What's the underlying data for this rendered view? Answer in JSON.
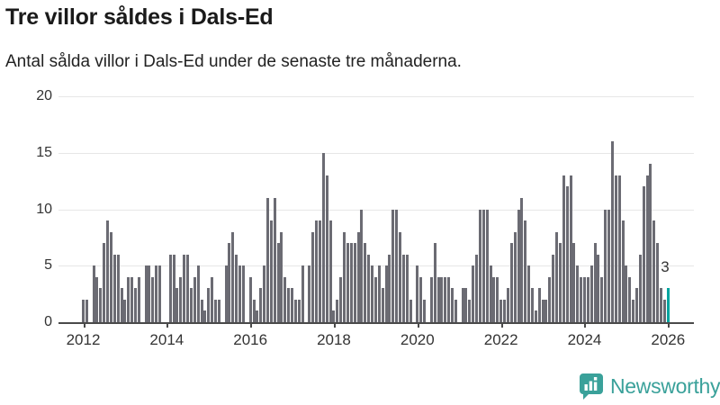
{
  "header": {
    "title": "Tre villor såldes i Dals-Ed",
    "subtitle": "Antal sålda villor i Dals-Ed under de senaste tre månaderna."
  },
  "chart_data": {
    "type": "bar",
    "title": "Tre villor såldes i Dals-Ed",
    "description": "Antal sålda villor i Dals-Ed under de senaste tre månaderna.",
    "frequency": "monthly",
    "x_start": "2012-01",
    "x_end": "2026-01",
    "ylim": [
      0,
      20
    ],
    "yticks": [
      0,
      5,
      10,
      15,
      20
    ],
    "xticks": [
      2012,
      2014,
      2016,
      2018,
      2020,
      2022,
      2024,
      2026
    ],
    "grid": true,
    "bar_color": "#6b6b73",
    "highlight_color": "#00a5a0",
    "highlight": "last",
    "annotation": {
      "text": "3",
      "target": "last-bar"
    },
    "series_by_year": [
      {
        "year": 2012,
        "values": [
          2,
          2,
          0,
          5,
          4,
          3,
          7,
          9,
          8,
          6,
          6,
          3
        ]
      },
      {
        "year": 2013,
        "values": [
          2,
          4,
          4,
          3,
          4,
          0,
          5,
          5,
          4,
          5,
          5,
          0
        ]
      },
      {
        "year": 2014,
        "values": [
          0,
          6,
          6,
          3,
          4,
          6,
          6,
          3,
          4,
          5,
          2,
          1
        ]
      },
      {
        "year": 2015,
        "values": [
          3,
          4,
          2,
          2,
          0,
          5,
          7,
          8,
          6,
          5,
          5,
          0
        ]
      },
      {
        "year": 2016,
        "values": [
          4,
          2,
          1,
          3,
          5,
          11,
          9,
          11,
          7,
          8,
          4,
          3
        ]
      },
      {
        "year": 2017,
        "values": [
          3,
          2,
          2,
          5,
          0,
          5,
          8,
          9,
          9,
          15,
          13,
          9
        ]
      },
      {
        "year": 2018,
        "values": [
          1,
          2,
          4,
          8,
          7,
          7,
          7,
          8,
          10,
          7,
          6,
          5
        ]
      },
      {
        "year": 2019,
        "values": [
          4,
          5,
          3,
          5,
          6,
          10,
          10,
          8,
          6,
          6,
          2,
          0
        ]
      },
      {
        "year": 2020,
        "values": [
          5,
          4,
          2,
          0,
          4,
          7,
          4,
          4,
          4,
          4,
          3,
          2
        ]
      },
      {
        "year": 2021,
        "values": [
          0,
          3,
          3,
          2,
          5,
          6,
          10,
          10,
          10,
          5,
          4,
          4
        ]
      },
      {
        "year": 2022,
        "values": [
          2,
          2,
          3,
          7,
          8,
          10,
          11,
          9,
          5,
          3,
          1,
          3
        ]
      },
      {
        "year": 2023,
        "values": [
          2,
          2,
          4,
          6,
          8,
          7,
          13,
          12,
          13,
          7,
          5,
          4
        ]
      },
      {
        "year": 2024,
        "values": [
          4,
          4,
          5,
          7,
          6,
          4,
          10,
          10,
          16,
          13,
          13,
          9
        ]
      },
      {
        "year": 2025,
        "values": [
          5,
          4,
          2,
          3,
          6,
          12,
          13,
          14,
          9,
          7,
          3,
          2
        ]
      },
      {
        "year": 2026,
        "values": [
          3
        ]
      }
    ],
    "latest_value": 3
  },
  "branding": {
    "logo_text": "Newsworthy",
    "logo_color": "#3aa19a",
    "logo_icon": "bar-chart-speech-bubble"
  }
}
